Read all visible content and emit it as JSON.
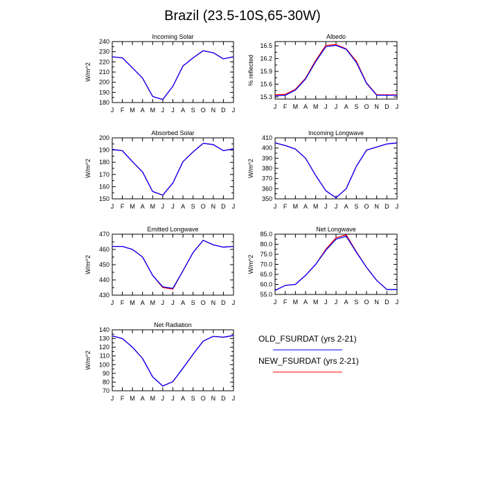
{
  "title": "Brazil (23.5-10S,65-30W)",
  "colors": {
    "old": "#0000ff",
    "new": "#ff0000",
    "axis": "#000000"
  },
  "legend": [
    {
      "label": "OLD_FSURDAT (yrs 2-21)",
      "color": "#0000ff"
    },
    {
      "label": "NEW_FSURDAT (yrs 2-21)",
      "color": "#ff0000"
    }
  ],
  "chart_data": [
    {
      "type": "line",
      "title": "Incoming Solar",
      "ylabel": "W/m^2",
      "categories": [
        "J",
        "F",
        "M",
        "A",
        "M",
        "J",
        "J",
        "A",
        "S",
        "O",
        "N",
        "D",
        "J"
      ],
      "ylim": [
        180,
        240
      ],
      "yticks": [
        "180",
        "190",
        "200",
        "210",
        "220",
        "230",
        "240"
      ],
      "ytick_values": [
        180,
        190,
        200,
        210,
        220,
        230,
        240
      ],
      "series": [
        {
          "name": "OLD_FSURDAT (yrs 2-21)",
          "color": "#0000ff",
          "values": [
            225,
            224,
            214,
            204,
            186,
            183,
            196,
            216,
            224,
            231,
            229,
            223,
            225
          ]
        },
        {
          "name": "NEW_FSURDAT (yrs 2-21)",
          "color": "#ff0000",
          "values": [
            225,
            224,
            214,
            204,
            186,
            183,
            196,
            216,
            224,
            231,
            229,
            223,
            225
          ]
        }
      ]
    },
    {
      "type": "line",
      "title": "Albedo",
      "ylabel": "% reflected",
      "categories": [
        "J",
        "F",
        "M",
        "A",
        "M",
        "J",
        "J",
        "A",
        "S",
        "O",
        "N",
        "D",
        "J"
      ],
      "ylim": [
        15.25,
        16.6
      ],
      "yticks": [
        "15.3",
        "15.6",
        "15.9",
        "16.2",
        "16.5"
      ],
      "ytick_values": [
        15.3,
        15.6,
        15.9,
        16.2,
        16.5
      ],
      "series": [
        {
          "name": "OLD_FSURDAT (yrs 2-21)",
          "color": "#0000ff",
          "values": [
            15.33,
            15.34,
            15.46,
            15.72,
            16.13,
            16.48,
            16.51,
            16.42,
            16.11,
            15.62,
            15.34,
            15.34,
            15.34
          ]
        },
        {
          "name": "NEW_FSURDAT (yrs 2-21)",
          "color": "#ff0000",
          "values": [
            15.35,
            15.36,
            15.48,
            15.74,
            16.16,
            16.51,
            16.53,
            16.43,
            16.14,
            15.63,
            15.35,
            15.35,
            15.35
          ]
        }
      ]
    },
    {
      "type": "line",
      "title": "Absorbed Solar",
      "ylabel": "W/m^2",
      "categories": [
        "J",
        "F",
        "M",
        "A",
        "M",
        "J",
        "J",
        "A",
        "S",
        "O",
        "N",
        "D",
        "J"
      ],
      "ylim": [
        150,
        200
      ],
      "yticks": [
        "150",
        "160",
        "170",
        "180",
        "190",
        "200"
      ],
      "ytick_values": [
        150,
        160,
        170,
        180,
        190,
        200
      ],
      "series": [
        {
          "name": "OLD_FSURDAT (yrs 2-21)",
          "color": "#0000ff",
          "values": [
            190.5,
            189.5,
            180.5,
            172,
            156,
            153,
            163,
            180.5,
            188.5,
            195.5,
            194.5,
            189.5,
            191
          ]
        },
        {
          "name": "NEW_FSURDAT (yrs 2-21)",
          "color": "#ff0000",
          "values": [
            190.5,
            189.5,
            180.5,
            172,
            156,
            153,
            163,
            180.5,
            188.5,
            195.5,
            194.5,
            189.5,
            191
          ]
        }
      ]
    },
    {
      "type": "line",
      "title": "Incoming Longwave",
      "ylabel": "W/m^2",
      "categories": [
        "J",
        "F",
        "M",
        "A",
        "M",
        "J",
        "J",
        "A",
        "S",
        "O",
        "N",
        "D",
        "J"
      ],
      "ylim": [
        350,
        410
      ],
      "yticks": [
        "350",
        "360",
        "370",
        "380",
        "390",
        "400",
        "410"
      ],
      "ytick_values": [
        350,
        360,
        370,
        380,
        390,
        400,
        410
      ],
      "series": [
        {
          "name": "OLD_FSURDAT (yrs 2-21)",
          "color": "#0000ff",
          "values": [
            405,
            402.5,
            399,
            390,
            373,
            358,
            351,
            360,
            382,
            398,
            401,
            404,
            405
          ]
        },
        {
          "name": "NEW_FSURDAT (yrs 2-21)",
          "color": "#ff0000",
          "values": [
            405,
            402.5,
            399,
            390,
            373,
            358,
            351,
            360,
            382,
            398,
            401,
            404,
            405
          ]
        }
      ]
    },
    {
      "type": "line",
      "title": "Emitted Longwave",
      "ylabel": "W/m^2",
      "categories": [
        "J",
        "F",
        "M",
        "A",
        "M",
        "J",
        "J",
        "A",
        "S",
        "O",
        "N",
        "D",
        "J"
      ],
      "ylim": [
        430,
        470
      ],
      "yticks": [
        "430",
        "440",
        "450",
        "460",
        "470"
      ],
      "ytick_values": [
        430,
        440,
        450,
        460,
        470
      ],
      "series": [
        {
          "name": "OLD_FSURDAT (yrs 2-21)",
          "color": "#0000ff",
          "values": [
            462,
            462,
            460,
            455,
            443,
            435.5,
            434.5,
            446,
            458,
            466,
            463,
            461.5,
            462
          ]
        },
        {
          "name": "NEW_FSURDAT (yrs 2-21)",
          "color": "#ff0000",
          "values": [
            462,
            462,
            460,
            455,
            443,
            435,
            434,
            446,
            458,
            466,
            463,
            461.5,
            462
          ]
        }
      ]
    },
    {
      "type": "line",
      "title": "Net Longwave",
      "ylabel": "W/m^2",
      "categories": [
        "J",
        "F",
        "M",
        "A",
        "M",
        "J",
        "J",
        "A",
        "S",
        "O",
        "N",
        "D",
        "J"
      ],
      "ylim": [
        55,
        85
      ],
      "yticks": [
        "55.0",
        "60.0",
        "65.0",
        "70.0",
        "75.0",
        "80.0",
        "85.0"
      ],
      "ytick_values": [
        55,
        60,
        65,
        70,
        75,
        80,
        85
      ],
      "series": [
        {
          "name": "OLD_FSURDAT (yrs 2-21)",
          "color": "#0000ff",
          "values": [
            57,
            59.5,
            60,
            64.5,
            70,
            77,
            82.5,
            84,
            76,
            68.5,
            62,
            57.5,
            57.5
          ]
        },
        {
          "name": "NEW_FSURDAT (yrs 2-21)",
          "color": "#ff0000",
          "values": [
            57,
            59.5,
            60,
            64.5,
            70,
            77.5,
            83.2,
            84.7,
            76.3,
            68.5,
            62,
            57.5,
            57.5
          ]
        }
      ]
    },
    {
      "type": "line",
      "title": "Net Radiation",
      "ylabel": "W/m^2",
      "categories": [
        "J",
        "F",
        "M",
        "A",
        "M",
        "J",
        "J",
        "A",
        "S",
        "O",
        "N",
        "D",
        "J"
      ],
      "ylim": [
        70,
        140
      ],
      "yticks": [
        "70",
        "80",
        "90",
        "100",
        "110",
        "120",
        "130",
        "140"
      ],
      "ytick_values": [
        70,
        80,
        90,
        100,
        110,
        120,
        130,
        140
      ],
      "series": [
        {
          "name": "OLD_FSURDAT (yrs 2-21)",
          "color": "#0000ff",
          "values": [
            133,
            130,
            120,
            107,
            86,
            75.5,
            80.5,
            96,
            112,
            127,
            132.5,
            131.5,
            133.5
          ]
        },
        {
          "name": "NEW_FSURDAT (yrs 2-21)",
          "color": "#ff0000",
          "values": [
            133,
            130,
            120,
            107,
            86,
            75.5,
            80.5,
            96,
            112,
            127,
            132.5,
            131.5,
            133.5
          ]
        }
      ]
    }
  ]
}
